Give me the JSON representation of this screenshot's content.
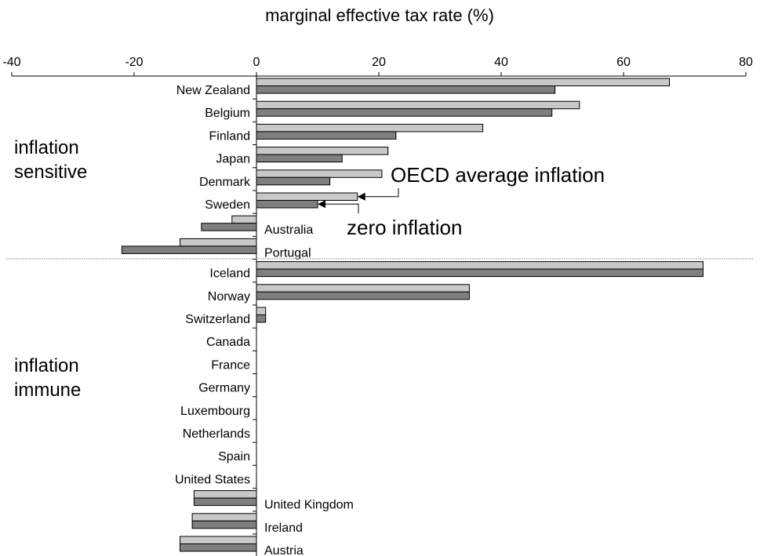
{
  "chart_data": {
    "type": "bar",
    "orientation": "horizontal",
    "title": "marginal effective tax rate (%)",
    "xlabel": "",
    "ylabel": "",
    "xlim": [
      -40,
      80
    ],
    "x_ticks": [
      "-40",
      "-20",
      "0",
      "20",
      "40",
      "60",
      "80"
    ],
    "x_tick_values": [
      -40,
      -20,
      0,
      20,
      40,
      60,
      80
    ],
    "axis_position": "top",
    "grid": false,
    "categories": [
      "New Zealand",
      "Belgium",
      "Finland",
      "Japan",
      "Denmark",
      "Sweden",
      "Australia",
      "Portugal",
      "Iceland",
      "Norway",
      "Switzerland",
      "Canada",
      "France",
      "Germany",
      "Luxembourg",
      "Netherlands",
      "Spain",
      "United States",
      "United Kingdom",
      "Ireland",
      "Austria"
    ],
    "series": [
      {
        "name": "OECD average inflation",
        "color": "#c8c8c8",
        "values": [
          67.5,
          52.8,
          37.0,
          21.5,
          20.5,
          16.5,
          -4.0,
          -12.5,
          73.0,
          34.8,
          1.5,
          0,
          0,
          0,
          0,
          0,
          0,
          0,
          -10.2,
          -10.5,
          -12.5
        ]
      },
      {
        "name": "zero inflation",
        "color": "#7f7f7f",
        "values": [
          48.8,
          48.3,
          22.8,
          14.0,
          12.0,
          10.0,
          -9.0,
          -22.0,
          73.0,
          34.8,
          1.5,
          0,
          0,
          0,
          0,
          0,
          0,
          0,
          -10.2,
          -10.5,
          -12.5
        ]
      }
    ],
    "groups": [
      {
        "label_lines": [
          "inflation",
          "sensitive"
        ],
        "first": 0,
        "last": 7
      },
      {
        "label_lines": [
          "inflation",
          "immune"
        ],
        "first": 8,
        "last": 20
      }
    ],
    "annotations": [
      "OECD average inflation",
      "zero inflation"
    ]
  }
}
